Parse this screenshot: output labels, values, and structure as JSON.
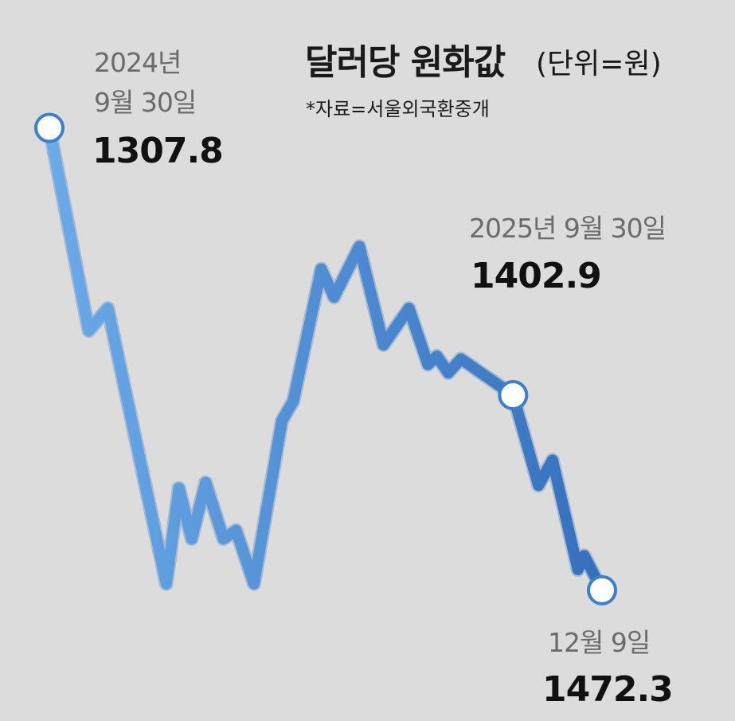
{
  "chart_data": {
    "type": "line",
    "title": "달러당 원화값",
    "unit": "(단위=원)",
    "source": "*자료=서울외국환중개",
    "series_color_start": "#6aaae8",
    "series_color_end": "#3670bd",
    "marker_color": "#3d7fc9",
    "background": "#dcdcdc",
    "y_inverted": true,
    "ylim": [
      1300,
      1480
    ],
    "points": [
      {
        "x": "2024-09-30",
        "y": 1307.8
      },
      {
        "x": "2024-10-31",
        "y": 1380
      },
      {
        "x": "2024-11-15",
        "y": 1372
      },
      {
        "x": "2024-12-31",
        "y": 1470
      },
      {
        "x": "2025-01-10",
        "y": 1436
      },
      {
        "x": "2025-01-20",
        "y": 1454
      },
      {
        "x": "2025-01-31",
        "y": 1434
      },
      {
        "x": "2025-02-14",
        "y": 1454
      },
      {
        "x": "2025-02-24",
        "y": 1451
      },
      {
        "x": "2025-03-10",
        "y": 1470
      },
      {
        "x": "2025-04-01",
        "y": 1412
      },
      {
        "x": "2025-04-10",
        "y": 1405
      },
      {
        "x": "2025-05-02",
        "y": 1358
      },
      {
        "x": "2025-05-12",
        "y": 1368
      },
      {
        "x": "2025-06-01",
        "y": 1350
      },
      {
        "x": "2025-06-20",
        "y": 1385
      },
      {
        "x": "2025-07-10",
        "y": 1372
      },
      {
        "x": "2025-07-25",
        "y": 1392
      },
      {
        "x": "2025-08-01",
        "y": 1389
      },
      {
        "x": "2025-08-10",
        "y": 1395
      },
      {
        "x": "2025-08-20",
        "y": 1390
      },
      {
        "x": "2025-09-30",
        "y": 1402.9
      },
      {
        "x": "2025-10-20",
        "y": 1435
      },
      {
        "x": "2025-10-31",
        "y": 1426
      },
      {
        "x": "2025-11-20",
        "y": 1465
      },
      {
        "x": "2025-11-25",
        "y": 1460
      },
      {
        "x": "2025-12-09",
        "y": 1472.3
      }
    ],
    "annotations": [
      {
        "id": "start",
        "date_line1": "2024년",
        "date_line2": "9월 30일",
        "value": "1307.8",
        "point_index": 0
      },
      {
        "id": "mid",
        "date_line1": "2025년 9월 30일",
        "date_line2": "",
        "value": "1402.9",
        "point_index": 21
      },
      {
        "id": "end",
        "date_line1": "12월 9일",
        "date_line2": "",
        "value": "1472.3",
        "point_index": 26
      }
    ]
  }
}
